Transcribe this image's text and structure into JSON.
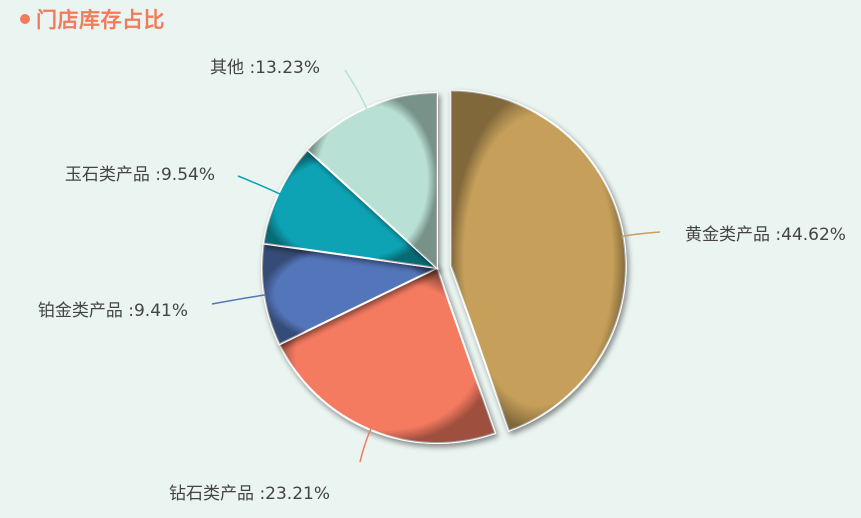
{
  "header": {
    "title": "门店库存占比"
  },
  "chart_data": {
    "type": "pie",
    "title": "门店库存占比",
    "slices": [
      {
        "name": "黄金类产品",
        "value": 44.62,
        "label": "黄金类产品 :44.62%",
        "color": "#c6a05a"
      },
      {
        "name": "钻石类产品",
        "value": 23.21,
        "label": "钻石类产品 :23.21%",
        "color": "#f47a61"
      },
      {
        "name": "铂金类产品",
        "value": 9.41,
        "label": "铂金类产品 :9.41%",
        "color": "#5275b9"
      },
      {
        "name": "玉石类产品",
        "value": 9.54,
        "label": "玉石类产品 :9.54%",
        "color": "#0aa3b4"
      },
      {
        "name": "其他",
        "value": 13.23,
        "label": "其他 :13.23%",
        "color": "#b9e0d4"
      }
    ],
    "exploded": "黄金类产品"
  }
}
